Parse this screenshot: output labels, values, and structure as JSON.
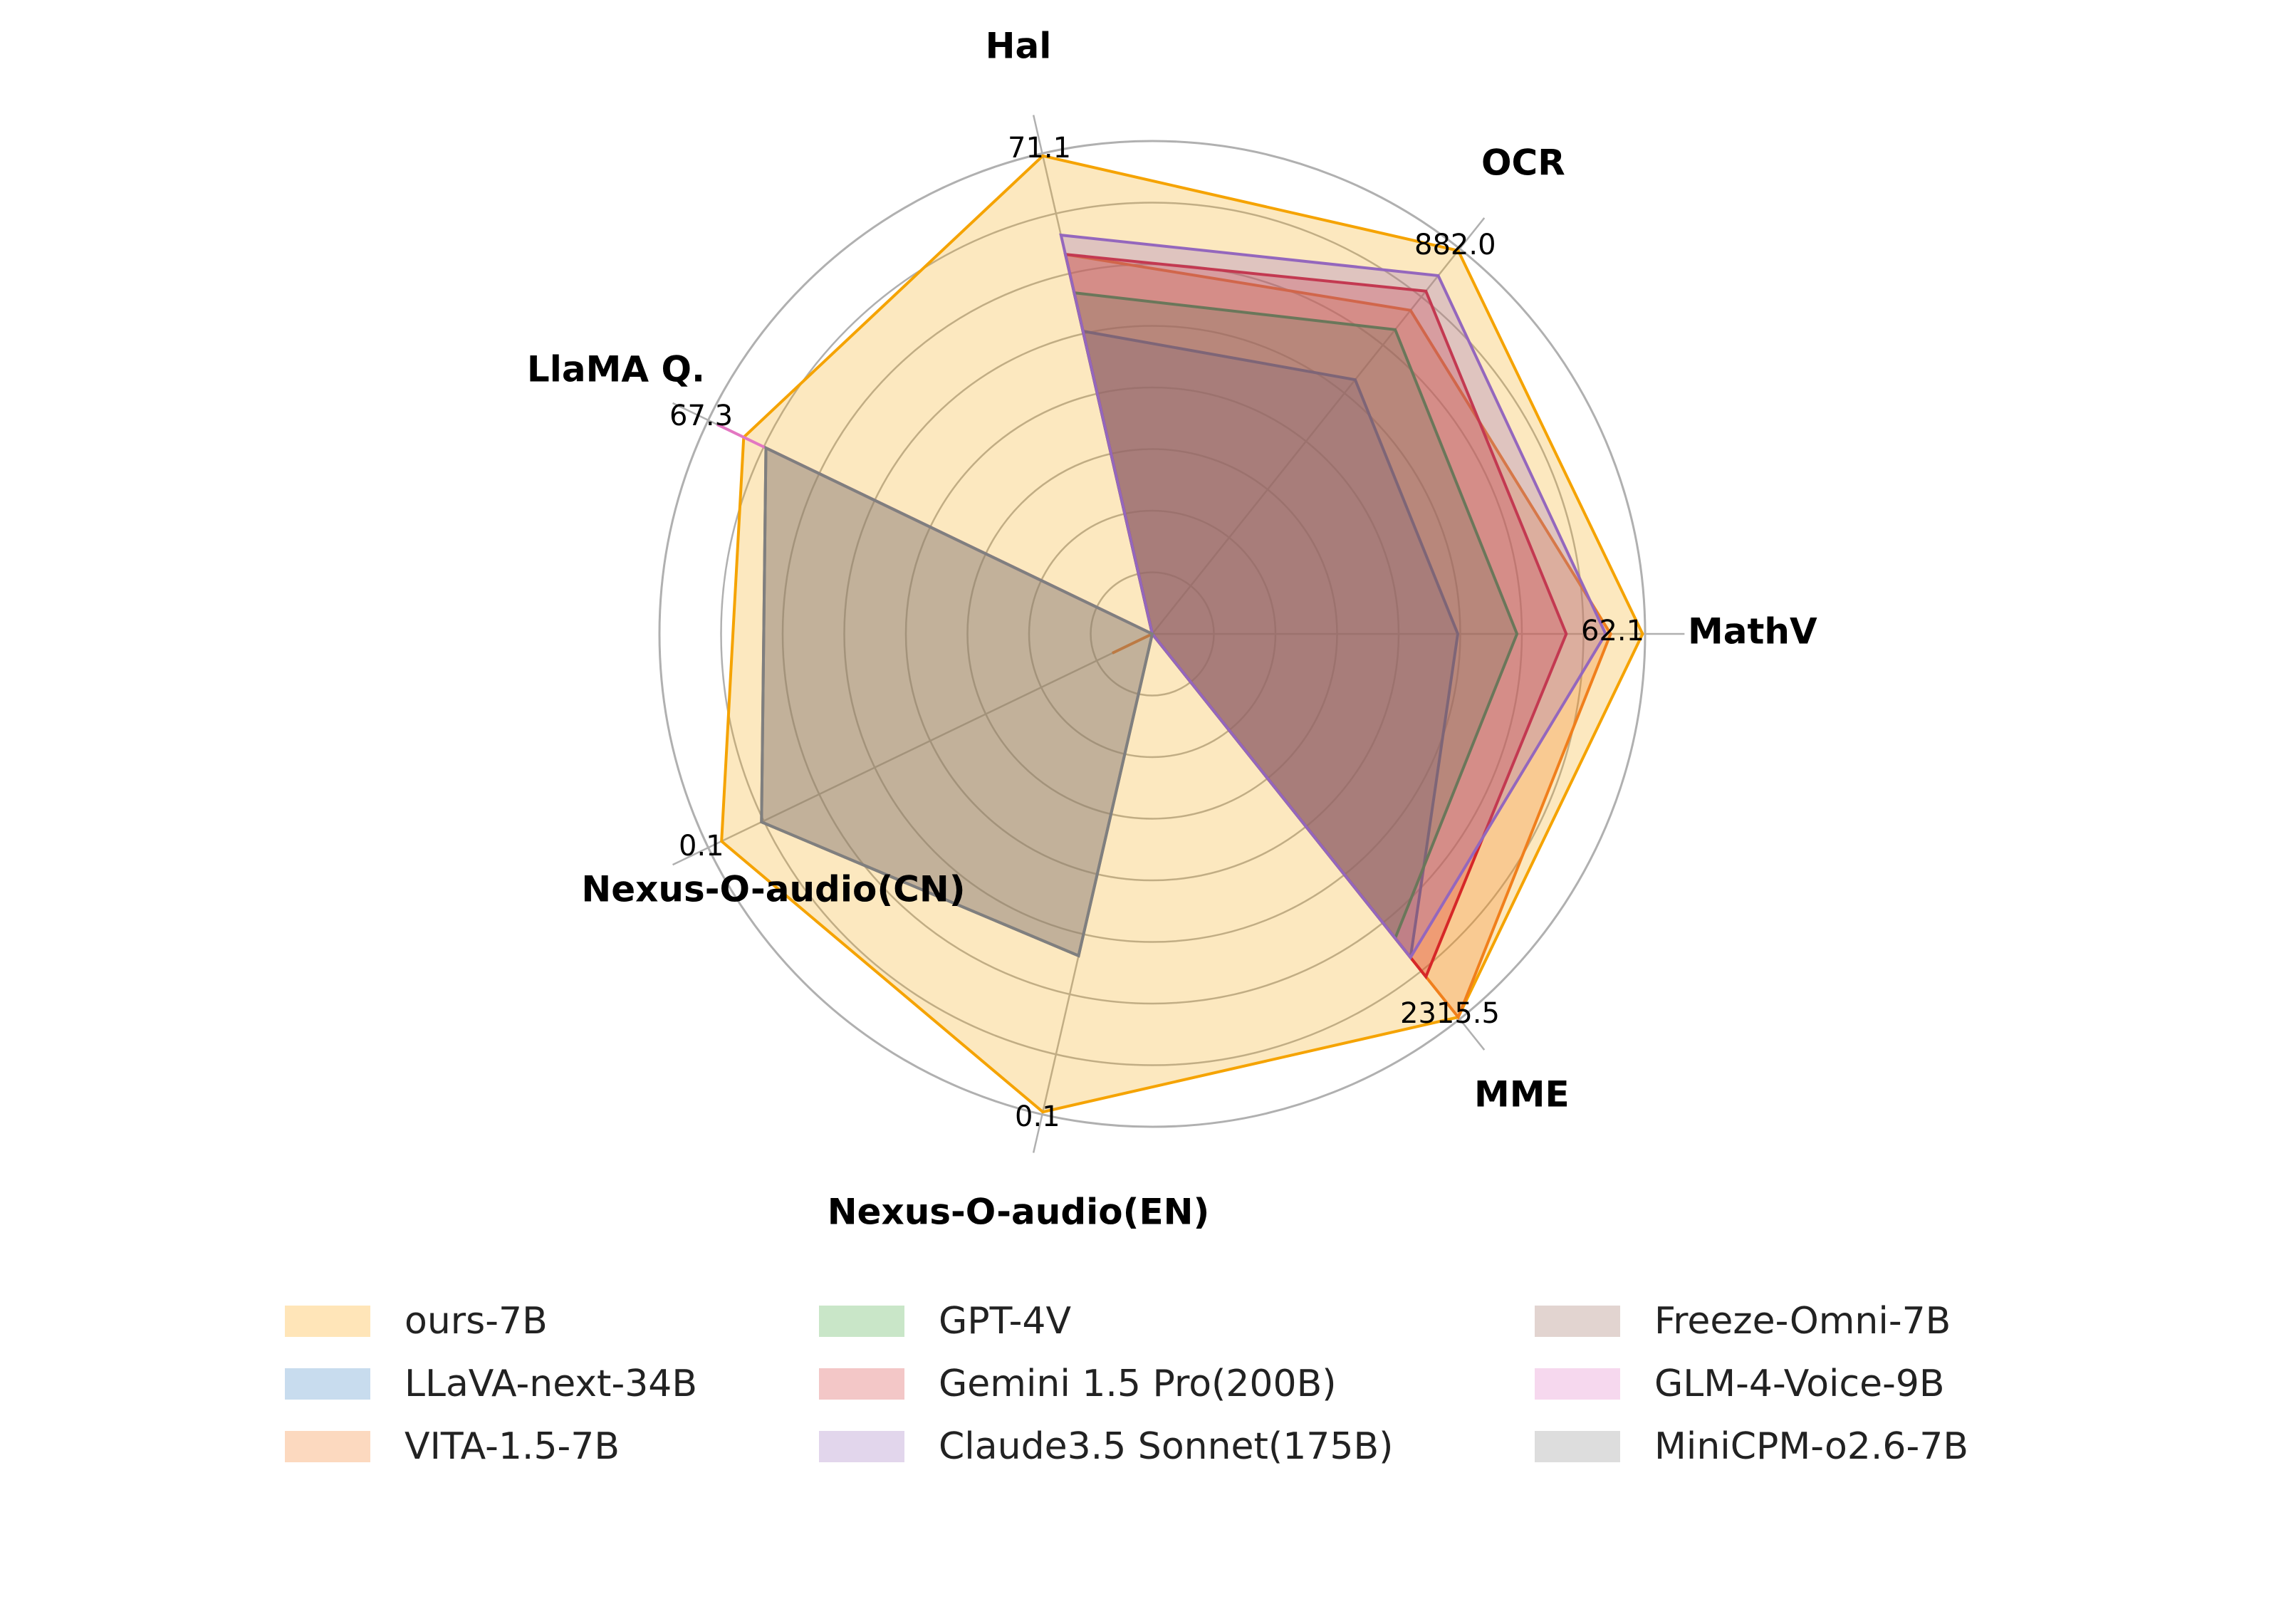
{
  "chart_data": {
    "type": "radar",
    "axes": [
      {
        "label": "MathV",
        "max_label": "62.1"
      },
      {
        "label": "OCR",
        "max_label": "882.0"
      },
      {
        "label": "Hal",
        "max_label": "71.1"
      },
      {
        "label": "LlaMA Q.",
        "max_label": "67.3"
      },
      {
        "label": "Nexus-O-audio(CN)",
        "max_label": "0.1"
      },
      {
        "label": "Nexus-O-audio(EN)",
        "max_label": "0.1"
      },
      {
        "label": "MME",
        "max_label": "2315.5"
      }
    ],
    "normalized_scale": [
      0,
      1
    ],
    "grid": true,
    "legend_placement": "bottom",
    "series": [
      {
        "name": "ours-7B",
        "color": "#f5a300",
        "fill": "#ffe5b8",
        "values": [
          0.995,
          0.995,
          0.995,
          0.92,
          0.97,
          0.995,
          0.995
        ]
      },
      {
        "name": "LLaVA-next-34B",
        "color": "#2a6db0",
        "fill": "#c8dcee",
        "values": [
          0.62,
          0.66,
          0.63,
          0.0,
          0.0,
          0.0,
          0.84
        ]
      },
      {
        "name": "VITA-1.5-7B",
        "color": "#f07f1c",
        "fill": "#fcd9bf",
        "values": [
          0.93,
          0.84,
          0.79,
          0.0,
          0.09,
          0.0,
          0.995
        ]
      },
      {
        "name": "GPT-4V",
        "color": "#2c9e3a",
        "fill": "#c9e6c8",
        "values": [
          0.74,
          0.79,
          0.71,
          0.0,
          0.0,
          0.0,
          0.79
        ]
      },
      {
        "name": "Gemini 1.5 Pro(200B)",
        "color": "#d62728",
        "fill": "#f3c7c7",
        "values": [
          0.84,
          0.89,
          0.79,
          0.0,
          0.0,
          0.0,
          0.89
        ]
      },
      {
        "name": "Claude3.5 Sonnet(175B)",
        "color": "#9467bd",
        "fill": "#e2d6ec",
        "values": [
          0.92,
          0.93,
          0.83,
          0.0,
          0.0,
          0.0,
          0.84
        ]
      },
      {
        "name": "Freeze-Omni-7B",
        "color": "#8c6d62",
        "fill": "#e2d4d0",
        "values": [
          0.0,
          0.0,
          0.0,
          0.87,
          0.88,
          0.67,
          0.0
        ]
      },
      {
        "name": "GLM-4-Voice-9B",
        "color": "#e377c2",
        "fill": "#f6d8ee",
        "values": [
          0.0,
          0.0,
          0.0,
          0.98,
          0.0,
          0.0,
          0.0
        ]
      },
      {
        "name": "MiniCPM-o2.6-7B",
        "color": "#7f7f7f",
        "fill": "#dddddd",
        "values": [
          0.0,
          0.0,
          0.0,
          0.87,
          0.88,
          0.67,
          0.0
        ]
      }
    ]
  }
}
